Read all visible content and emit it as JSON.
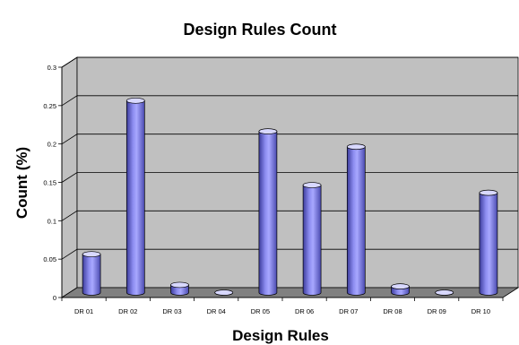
{
  "chart_data": {
    "type": "bar",
    "title": "Design Rules Count",
    "xlabel": "Design Rules",
    "ylabel": "Count (%)",
    "categories": [
      "DR 01",
      "DR 02",
      "DR 03",
      "DR 04",
      "DR 05",
      "DR 06",
      "DR 07",
      "DR 08",
      "DR 09",
      "DR 10"
    ],
    "values": [
      0.05,
      0.25,
      0.01,
      0.0,
      0.21,
      0.14,
      0.19,
      0.008,
      0.0,
      0.13
    ],
    "ylim": [
      0,
      0.3
    ],
    "yticks": [
      0,
      0.05,
      0.1,
      0.15,
      0.2,
      0.25,
      0.3
    ],
    "ytick_labels": [
      "0",
      "0.05",
      "0.1",
      "0.15",
      "0.2",
      "0.25",
      "0.3"
    ],
    "grid": true,
    "legend": "none",
    "style": "3d-cylinder",
    "colors": {
      "bar": "#8c8cf0",
      "bar_dark": "#4a4ab0",
      "bar_light": "#d8d8ff",
      "wall": "#c0c0c0",
      "floor": "#808080"
    }
  }
}
